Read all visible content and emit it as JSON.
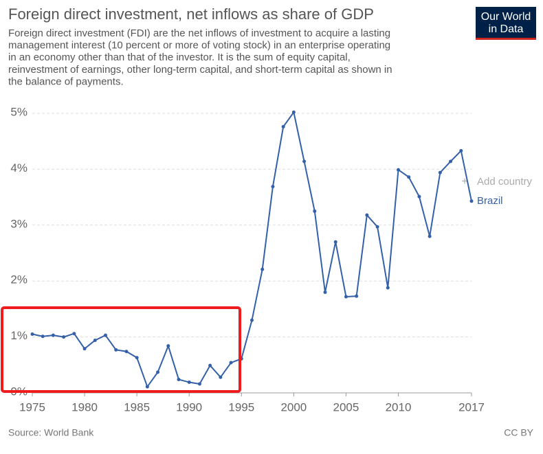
{
  "chart_data": {
    "type": "line",
    "title": "Foreign direct investment, net inflows as share of GDP",
    "subtitle": [
      "Foreign direct investment (FDI) are the net inflows of investment to acquire a lasting",
      "management interest (10 percent or more of voting stock) in an enterprise operating",
      "in an economy other than that of the investor. It is the sum of equity capital,",
      "reinvestment of earnings, other long-term capital, and short-term capital as shown in",
      "the balance of payments."
    ],
    "logo": [
      "Our World",
      "in Data"
    ],
    "add_country": "Add country",
    "source": "Source: World Bank",
    "license": "CC BY",
    "x": [
      1975,
      1976,
      1977,
      1978,
      1979,
      1980,
      1981,
      1982,
      1983,
      1984,
      1985,
      1986,
      1987,
      1988,
      1989,
      1990,
      1991,
      1992,
      1993,
      1994,
      1995,
      1996,
      1997,
      1998,
      1999,
      2000,
      2001,
      2002,
      2003,
      2004,
      2005,
      2006,
      2007,
      2008,
      2009,
      2010,
      2011,
      2012,
      2013,
      2014,
      2015,
      2016,
      2017
    ],
    "series": [
      {
        "name": "Brazil",
        "color": "#3360a9",
        "values": [
          1.05,
          1.01,
          1.03,
          1.0,
          1.06,
          0.79,
          0.94,
          1.03,
          0.77,
          0.74,
          0.63,
          0.11,
          0.37,
          0.84,
          0.24,
          0.19,
          0.16,
          0.49,
          0.28,
          0.54,
          0.61,
          1.3,
          2.21,
          3.69,
          4.76,
          5.02,
          4.14,
          3.25,
          1.8,
          2.7,
          1.72,
          1.73,
          3.18,
          2.97,
          1.88,
          3.99,
          3.86,
          3.51,
          2.8,
          3.94,
          4.14,
          4.33,
          3.43
        ]
      }
    ],
    "xlim": [
      1975,
      2017
    ],
    "xticks": [
      1975,
      1980,
      1985,
      1990,
      1995,
      2000,
      2005,
      2010,
      2017
    ],
    "ylim": [
      0,
      5
    ],
    "yticks": [
      {
        "value": 0,
        "label": "0%"
      },
      {
        "value": 1,
        "label": "1%"
      },
      {
        "value": 2,
        "label": "2%"
      },
      {
        "value": 3,
        "label": "3%"
      },
      {
        "value": 4,
        "label": "4%"
      },
      {
        "value": 5,
        "label": "5%"
      }
    ],
    "grid": true
  }
}
